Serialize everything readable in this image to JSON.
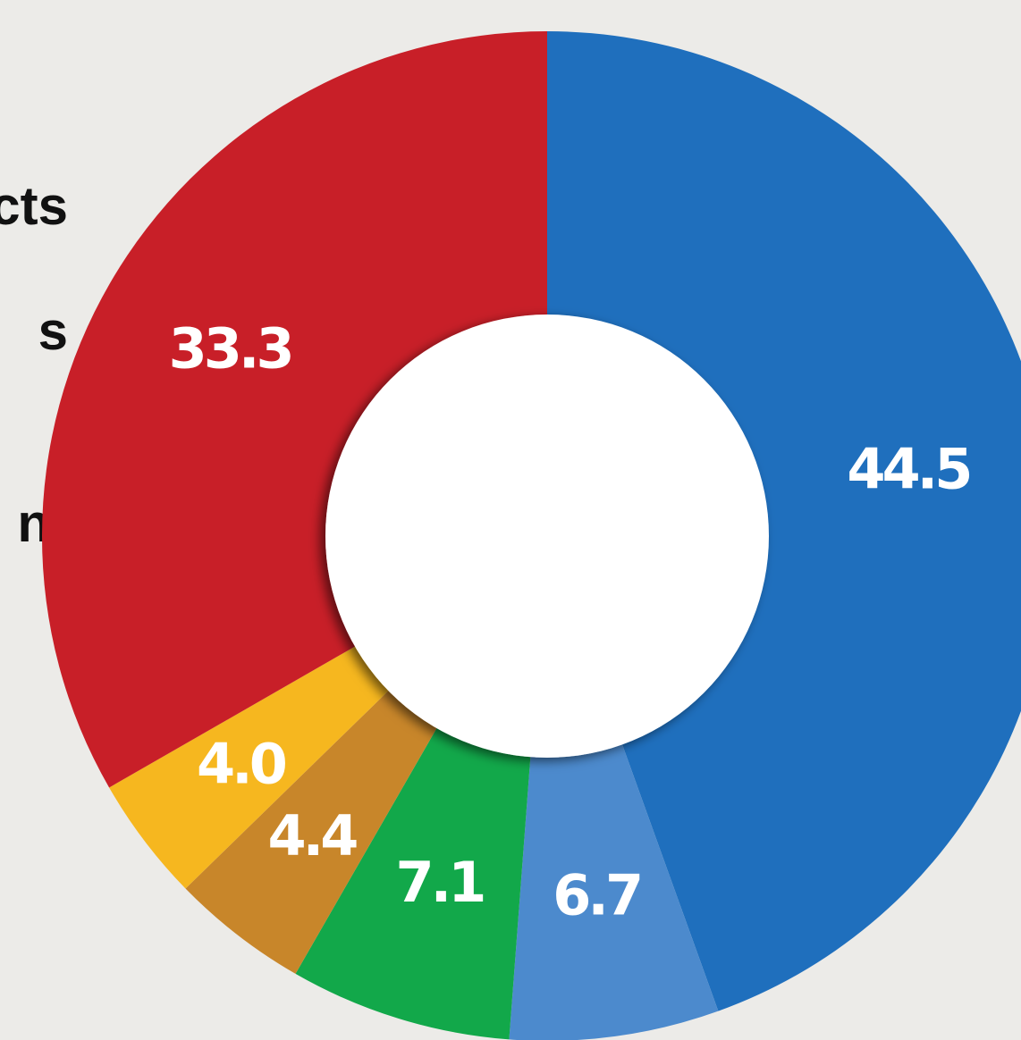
{
  "chart_data": {
    "type": "pie",
    "categories": [
      null,
      null,
      null,
      null,
      null,
      null
    ],
    "values": [
      44.5,
      6.7,
      7.1,
      4.4,
      4.0,
      33.3
    ],
    "value_labels": [
      "44.5",
      "6.7",
      "7.1",
      "4.4",
      "4.0",
      "33.3"
    ],
    "colors": [
      "#1f6fbd",
      "#4c8acd",
      "#12a84a",
      "#c8862a",
      "#f6b71f",
      "#c81f28"
    ],
    "donut": true,
    "annotations": [
      "cts",
      "s",
      "nt"
    ]
  }
}
